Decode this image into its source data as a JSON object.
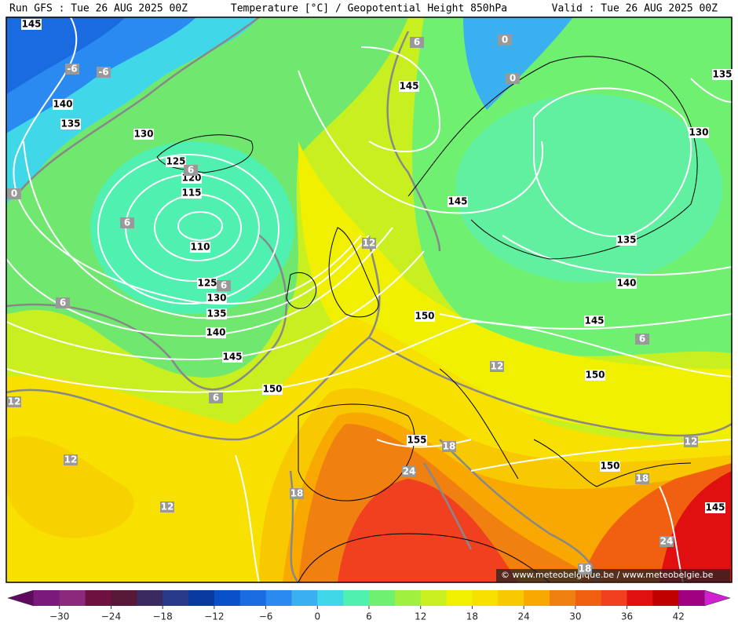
{
  "header": {
    "left": "Run GFS : Tue 26 AUG 2025 00Z",
    "center": "Temperature [°C] / Geopotential Height 850hPa",
    "right": "Valid : Tue 26 AUG 2025 00Z"
  },
  "credit": "© www.meteobelgique.be / www.meteobelgie.be",
  "height_labels": [
    "145",
    "140",
    "135",
    "130",
    "125",
    "120",
    "115",
    "110",
    "125",
    "130",
    "135",
    "140",
    "145",
    "150",
    "145",
    "145",
    "150",
    "155",
    "150",
    "150",
    "145",
    "140",
    "135",
    "130",
    "135",
    "145"
  ],
  "temperature_labels": [
    "-6",
    "-6",
    "0",
    "0",
    "0",
    "6",
    "6",
    "6",
    "6",
    "6",
    "6",
    "6",
    "12",
    "12",
    "12",
    "12",
    "12",
    "12",
    "18",
    "18",
    "18",
    "18",
    "24",
    "24"
  ],
  "colorbar": {
    "range": [
      -36,
      48
    ],
    "ticks": [
      {
        "value": -30,
        "label": "−30"
      },
      {
        "value": -24,
        "label": "−24"
      },
      {
        "value": -18,
        "label": "−18"
      },
      {
        "value": -12,
        "label": "−12"
      },
      {
        "value": -6,
        "label": "−6"
      },
      0,
      6,
      12,
      18,
      24,
      30,
      36,
      42
    ],
    "colors": [
      "#5e0a5e",
      "#7c1a7c",
      "#8b2a7c",
      "#6e1040",
      "#581838",
      "#3a2a60",
      "#2a3a8a",
      "#0a3aa0",
      "#0a50c8",
      "#1a6ae0",
      "#2a8af0",
      "#3ab0f0",
      "#40d8e8",
      "#50f0b0",
      "#70f070",
      "#a0f040",
      "#c8f020",
      "#f0f000",
      "#f8e000",
      "#f8c800",
      "#f8a800",
      "#f08010",
      "#f06010",
      "#f04020",
      "#e01010",
      "#c00000",
      "#a00080",
      "#d020d0"
    ]
  }
}
